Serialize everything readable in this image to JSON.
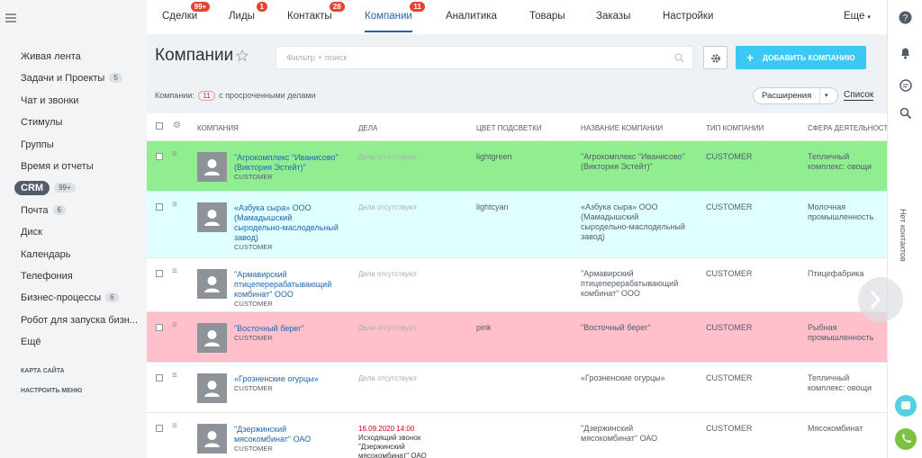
{
  "sidebar": {
    "items": [
      {
        "label": "Живая лента"
      },
      {
        "label": "Задачи и Проекты",
        "badge": "5"
      },
      {
        "label": "Чат и звонки"
      },
      {
        "label": "Стимулы"
      },
      {
        "label": "Группы"
      },
      {
        "label": "Время и отчеты"
      },
      {
        "label": "CRM",
        "badge": "99+",
        "active": true
      },
      {
        "label": "Почта",
        "badge": "6"
      },
      {
        "label": "Диск"
      },
      {
        "label": "Календарь"
      },
      {
        "label": "Телефония"
      },
      {
        "label": "Бизнес-процессы",
        "badge": "6"
      },
      {
        "label": "Робот для запуска бизн..."
      },
      {
        "label": "Ещё"
      }
    ],
    "links": [
      "КАРТА САЙТА",
      "НАСТРОИТЬ МЕНЮ"
    ]
  },
  "topnav": {
    "tabs": [
      {
        "label": "Сделки",
        "badge": "99+"
      },
      {
        "label": "Лиды",
        "badge": "1"
      },
      {
        "label": "Контакты",
        "badge": "28"
      },
      {
        "label": "Компании",
        "badge": "11",
        "active": true
      },
      {
        "label": "Аналитика"
      },
      {
        "label": "Товары"
      },
      {
        "label": "Заказы"
      },
      {
        "label": "Настройки"
      }
    ],
    "more": "Еще"
  },
  "header": {
    "title": "Компании",
    "filter_placeholder": "Фильтр + поиск",
    "add_button": "ДОБАВИТЬ КОМПАНИЮ"
  },
  "summary": {
    "label": "Компании:",
    "count": "11",
    "text": "с просроченными делами",
    "extensions": "Расширения",
    "view": "Список"
  },
  "table": {
    "columns": [
      "КОМПАНИЯ",
      "ДЕЛА",
      "ЦВЕТ ПОДСВЕТКИ",
      "НАЗВАНИЕ КОМПАНИИ",
      "ТИП КОМПАНИИ",
      "СФЕРА ДЕЯТЕЛЬНОСТИ"
    ],
    "rows": [
      {
        "company": "\"Агрокомплекс \"Иванисово\" (Виктория Эстейт)\"",
        "company_type": "CUSTOMER",
        "deals": "Дела отсутствуют",
        "color": "lightgreen",
        "name": "\"Агрокомплекс \"Иванисово\" (Виктория Эстейт)\"",
        "type": "CUSTOMER",
        "sphere": "Тепличный комплекс: овощи"
      },
      {
        "company": "«Азбука сыра» ООО (Мамадышский сыродельно-маслодельный завод)",
        "company_type": "CUSTOMER",
        "deals": "Дела отсутствуют",
        "color": "lightcyan",
        "name": "«Азбука сыра» ООО (Мамадышский сыродельно-маслодельный завод)",
        "type": "CUSTOMER",
        "sphere": "Молочная промышленность"
      },
      {
        "company": "\"Армавирский птицеперерабатывающий комбинат\" ООО",
        "company_type": "CUSTOMER",
        "deals": "Дела отсутствуют",
        "name": "\"Армавирский птицеперерабатывающий комбинат\" ООО",
        "type": "CUSTOMER",
        "sphere": "Птицефабрика"
      },
      {
        "company": "\"Восточный берег\"",
        "company_type": "CUSTOMER",
        "deals": "Дела отсутствуют",
        "color": "pink",
        "name": "\"Восточный берег\"",
        "type": "CUSTOMER",
        "sphere": "Рыбная промышленность"
      },
      {
        "company": "«Грозненские огурцы»",
        "company_type": "CUSTOMER",
        "deals": "Дела отсутствуют",
        "name": "«Грозненские огурцы»",
        "type": "CUSTOMER",
        "sphere": "Тепличный комплекс: овощи"
      },
      {
        "company": "\"Дзержинский мясокомбинат\" ОАО",
        "company_type": "CUSTOMER",
        "deal_date": "16.09.2020 14:00",
        "deals": "Исходящий звонок \"Дзержинский мясокомбинат\" ОАО",
        "name": "\"Дзержинский мясокомбинат\" ОАО",
        "type": "CUSTOMER",
        "sphere": "Мясокомбинат"
      }
    ]
  },
  "right_panel": {
    "no_contacts": "Нет контактов"
  }
}
